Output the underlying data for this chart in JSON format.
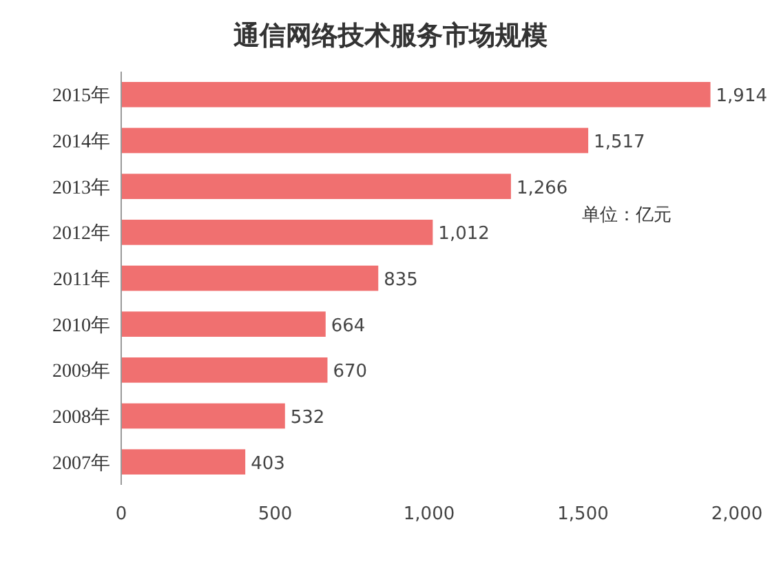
{
  "chart_data": {
    "type": "bar",
    "orientation": "horizontal",
    "title": "通信网络技术服务市场规模",
    "categories": [
      "2015年",
      "2014年",
      "2013年",
      "2012年",
      "2011年",
      "2010年",
      "2009年",
      "2008年",
      "2007年"
    ],
    "values": [
      1914,
      1517,
      1266,
      1012,
      835,
      664,
      670,
      532,
      403
    ],
    "value_labels": [
      "1,914",
      "1,517",
      "1,266",
      "1,012",
      "835",
      "664",
      "670",
      "532",
      "403"
    ],
    "color": "#f07070",
    "xlim": [
      0,
      2000
    ],
    "xticks": [
      0,
      500,
      {
        "value": 1000,
        "label": "1,000"
      },
      {
        "value": 1500,
        "label": "1,500"
      },
      {
        "value": 2000,
        "label": "2,000"
      }
    ],
    "annotations": [
      "单位：亿元"
    ]
  }
}
